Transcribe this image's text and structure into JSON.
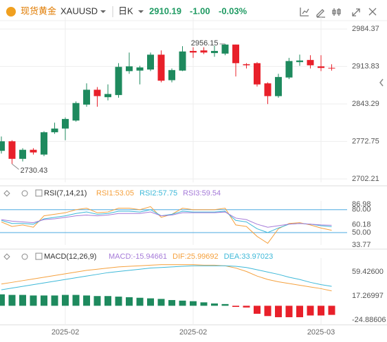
{
  "header": {
    "logo_text": "现货黄金",
    "symbol": "XAUUSD",
    "period": "日K",
    "price": "2910.19",
    "change": "-1.00",
    "change_pct": "-0.03%"
  },
  "chart_data": [
    {
      "type": "candlestick",
      "categories": [
        null,
        null,
        null,
        null,
        null,
        null,
        "2025-02",
        null,
        null,
        null,
        null,
        null,
        null,
        null,
        null,
        null,
        null,
        null,
        "2025-02",
        null,
        null,
        null,
        null,
        null,
        null,
        null,
        null,
        null,
        null,
        null,
        "2025-03",
        null
      ],
      "open": [
        2755,
        2773,
        2740,
        2757,
        2748,
        2790,
        2797,
        2812,
        2842,
        2870,
        2856,
        2860,
        2905,
        2906,
        2908,
        2936,
        2888,
        2906,
        2943,
        2944,
        2939,
        2938,
        2955,
        2918,
        2920,
        2882,
        2858,
        2893,
        2922,
        2926,
        2914,
        2911.19
      ],
      "high": [
        2782,
        2775,
        2760,
        2760,
        2792,
        2808,
        2818,
        2848,
        2882,
        2875,
        2880,
        2920,
        2940,
        2915,
        2940,
        2944,
        2910,
        2952,
        2950,
        2950,
        2953,
        2956.15,
        2955,
        2920,
        2922,
        2884,
        2900,
        2930,
        2936,
        2935,
        2935,
        2918
      ],
      "low": [
        2750,
        2730.43,
        2735,
        2748,
        2745,
        2787,
        2775,
        2810,
        2838,
        2838,
        2850,
        2855,
        2900,
        2880,
        2905,
        2884,
        2884,
        2905,
        2930,
        2937,
        2932,
        2935,
        2895,
        2910,
        2876,
        2843,
        2855,
        2890,
        2915,
        2910,
        2905,
        2906
      ],
      "close": [
        2773,
        2740,
        2757,
        2752,
        2790,
        2797,
        2815,
        2845,
        2870,
        2858,
        2862,
        2913,
        2914,
        2912,
        2936,
        2887,
        2907,
        2942,
        2940,
        2940,
        2943,
        2955,
        2920,
        2916,
        2880,
        2858,
        2894,
        2924,
        2925,
        2916,
        2911,
        2910.19
      ],
      "up_color": "#1e8a5e",
      "down_color": "#e8202a",
      "ylim": [
        2695.74,
        3000
      ],
      "yticks": [
        2984.37,
        2913.83,
        2843.29,
        2772.75,
        2702.21
      ],
      "grid": true
    },
    {
      "type": "line",
      "title": "RSI(7,14,21)",
      "series": [
        {
          "name": "RSI1:53.05",
          "color": "#f5a03c",
          "values": [
            64,
            58,
            60,
            57,
            72,
            74,
            76,
            80,
            82,
            76,
            77,
            82,
            82,
            80,
            84,
            70,
            74,
            82,
            80,
            80,
            80,
            82,
            60,
            58,
            45,
            36,
            55,
            62,
            63,
            60,
            56,
            53.05
          ]
        },
        {
          "name": "RSI2:57.75",
          "color": "#3cb8d8",
          "values": [
            66,
            62,
            62,
            61,
            68,
            70,
            72,
            75,
            77,
            74,
            75,
            78,
            78,
            77,
            80,
            72,
            74,
            78,
            77,
            77,
            77,
            78,
            66,
            64,
            55,
            50,
            56,
            61,
            62,
            61,
            59,
            57.75
          ]
        },
        {
          "name": "RSI3:59.54",
          "color": "#a57ad8",
          "values": [
            67,
            65,
            64,
            63,
            67,
            68,
            70,
            72,
            73,
            72,
            73,
            75,
            75,
            75,
            77,
            72,
            73,
            76,
            76,
            76,
            76,
            77,
            69,
            67,
            61,
            57,
            59,
            61,
            62,
            61,
            60,
            59.54
          ]
        }
      ],
      "ylim": [
        33.77,
        86.98
      ],
      "yticks": [
        86.98,
        {
          "value": 80,
          "label": "80.00"
        },
        60.18,
        {
          "value": 50,
          "label": "50.00"
        },
        33.77
      ]
    },
    {
      "type": "bar",
      "title": "MACD(12,26,9)",
      "name": "MACD:-15.94661",
      "name_color": "#a57ad8",
      "up_color": "#1e8a5e",
      "down_color": "#e8202a",
      "values": [
        20,
        19,
        19,
        18,
        18,
        18,
        19,
        19,
        18,
        17,
        17,
        16,
        15,
        14,
        13,
        12,
        10,
        9,
        8,
        6,
        4,
        3,
        -2,
        -3,
        -14,
        -18,
        -20,
        -20,
        -20,
        -17,
        -17,
        -15.94661
      ],
      "series": [
        {
          "name": "DIF:25.99692",
          "color": "#f5a03c",
          "values": [
            38,
            41,
            44,
            47,
            50,
            53,
            56,
            59,
            62,
            64,
            66,
            68,
            69,
            70,
            71,
            72,
            72,
            72,
            72,
            71,
            71,
            70,
            66,
            60,
            52,
            46,
            42,
            39,
            36,
            33,
            30,
            25.99692
          ]
        },
        {
          "name": "DEA:33.97023",
          "color": "#3cb8d8",
          "values": [
            28,
            31,
            34,
            37,
            40,
            43,
            46,
            49,
            52,
            55,
            58,
            60,
            62,
            64,
            66,
            67,
            68,
            69,
            70,
            70,
            70,
            70,
            69,
            67,
            63,
            59,
            55,
            50,
            46,
            41,
            37,
            33.97023
          ]
        }
      ],
      "ylim": [
        -33.3,
        77.5
      ],
      "yticks": [
        {
          "value": 59.426,
          "label": "59.42600"
        },
        17.26997,
        -24.88606
      ]
    }
  ]
}
